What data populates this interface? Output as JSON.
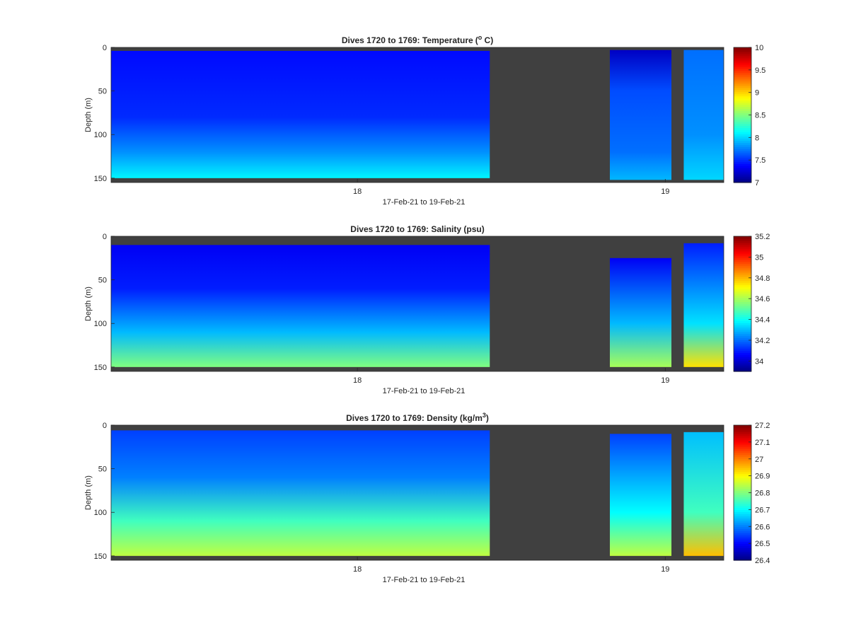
{
  "chart_data": [
    {
      "type": "heatmap",
      "title": "Dives 1720 to 1769: Temperature",
      "title_unit": "(",
      "title_unit_sup": "o",
      "title_unit_tail": " C)",
      "ylabel": "Depth (m)",
      "xlabel": "17-Feb-21 to 19-Feb-21",
      "x_ticks": [
        {
          "x": 18,
          "label": "18"
        },
        {
          "x": 19,
          "label": "19"
        }
      ],
      "xlim": [
        17.2,
        19.19
      ],
      "y_ticks": [
        0,
        50,
        100,
        150
      ],
      "ylim": [
        155,
        0
      ],
      "y_reversed": true,
      "colormap": "jet",
      "clim": [
        7,
        10
      ],
      "colorbar_ticks": [
        "7",
        "7.5",
        "8",
        "8.5",
        "9",
        "9.5",
        "10"
      ],
      "colorbar_values": [
        7,
        7.5,
        8,
        8.5,
        9,
        9.5,
        10
      ],
      "gap_color": "#404040",
      "data_gaps": [
        [
          18.43,
          18.82
        ],
        [
          19.02,
          19.06
        ]
      ],
      "profiles": [
        {
          "x_range": [
            17.2,
            18.43
          ],
          "surface_m": 4,
          "bottom_m": 150,
          "layers": [
            {
              "depth_m": 0,
              "value": 7.4
            },
            {
              "depth_m": 80,
              "value": 7.5
            },
            {
              "depth_m": 120,
              "value": 7.8
            },
            {
              "depth_m": 150,
              "value": 8.1
            }
          ]
        },
        {
          "x_range": [
            18.82,
            19.02
          ],
          "surface_m": 3,
          "bottom_m": 152,
          "layers": [
            {
              "depth_m": 0,
              "value": 7.2
            },
            {
              "depth_m": 50,
              "value": 7.6
            },
            {
              "depth_m": 120,
              "value": 7.7
            },
            {
              "depth_m": 150,
              "value": 7.9
            }
          ]
        },
        {
          "x_range": [
            19.06,
            19.19
          ],
          "surface_m": 3,
          "bottom_m": 152,
          "layers": [
            {
              "depth_m": 0,
              "value": 7.7
            },
            {
              "depth_m": 100,
              "value": 7.8
            },
            {
              "depth_m": 150,
              "value": 8.0
            }
          ]
        }
      ]
    },
    {
      "type": "heatmap",
      "title": "Dives 1720 to 1769: Salinity (psu)",
      "ylabel": "Depth (m)",
      "xlabel": "17-Feb-21 to 19-Feb-21",
      "x_ticks": [
        {
          "x": 18,
          "label": "18"
        },
        {
          "x": 19,
          "label": "19"
        }
      ],
      "xlim": [
        17.2,
        19.19
      ],
      "y_ticks": [
        0,
        50,
        100,
        150
      ],
      "ylim": [
        155,
        0
      ],
      "y_reversed": true,
      "colormap": "jet",
      "clim": [
        33.9,
        35.2
      ],
      "colorbar_ticks": [
        "34",
        "34.2",
        "34.4",
        "34.6",
        "34.8",
        "35",
        "35.2"
      ],
      "colorbar_values": [
        34,
        34.2,
        34.4,
        34.6,
        34.8,
        35,
        35.2
      ],
      "gap_color": "#404040",
      "data_gaps": [
        [
          18.43,
          18.82
        ],
        [
          19.02,
          19.06
        ]
      ],
      "profiles": [
        {
          "x_range": [
            17.2,
            18.43
          ],
          "surface_m": 10,
          "bottom_m": 150,
          "layers": [
            {
              "depth_m": 0,
              "value": 34.05
            },
            {
              "depth_m": 60,
              "value": 34.1
            },
            {
              "depth_m": 110,
              "value": 34.3
            },
            {
              "depth_m": 150,
              "value": 34.55
            }
          ]
        },
        {
          "x_range": [
            18.82,
            19.02
          ],
          "surface_m": 25,
          "bottom_m": 150,
          "layers": [
            {
              "depth_m": 0,
              "value": 34.05
            },
            {
              "depth_m": 100,
              "value": 34.3
            },
            {
              "depth_m": 150,
              "value": 34.6
            }
          ]
        },
        {
          "x_range": [
            19.06,
            19.19
          ],
          "surface_m": 8,
          "bottom_m": 150,
          "layers": [
            {
              "depth_m": 0,
              "value": 34.1
            },
            {
              "depth_m": 100,
              "value": 34.35
            },
            {
              "depth_m": 150,
              "value": 34.75
            }
          ]
        }
      ]
    },
    {
      "type": "heatmap",
      "title": "Dives 1720 to 1769: Density (kg/m",
      "title_unit_sup": "3",
      "title_unit_tail": ")",
      "ylabel": "Depth (m)",
      "xlabel": "17-Feb-21 to 19-Feb-21",
      "x_ticks": [
        {
          "x": 18,
          "label": "18"
        },
        {
          "x": 19,
          "label": "19"
        }
      ],
      "xlim": [
        17.2,
        19.19
      ],
      "y_ticks": [
        0,
        50,
        100,
        150
      ],
      "ylim": [
        155,
        0
      ],
      "y_reversed": true,
      "colormap": "jet",
      "clim": [
        26.4,
        27.2
      ],
      "colorbar_ticks": [
        "26.4",
        "26.5",
        "26.6",
        "26.7",
        "26.8",
        "26.9",
        "27",
        "27.1",
        "27.2"
      ],
      "colorbar_values": [
        26.4,
        26.5,
        26.6,
        26.7,
        26.8,
        26.9,
        27,
        27.1,
        27.2
      ],
      "gap_color": "#404040",
      "data_gaps": [
        [
          18.43,
          18.82
        ],
        [
          19.02,
          19.06
        ]
      ],
      "profiles": [
        {
          "x_range": [
            17.2,
            18.43
          ],
          "surface_m": 6,
          "bottom_m": 150,
          "layers": [
            {
              "depth_m": 0,
              "value": 26.55
            },
            {
              "depth_m": 60,
              "value": 26.6
            },
            {
              "depth_m": 110,
              "value": 26.75
            },
            {
              "depth_m": 150,
              "value": 26.85
            }
          ]
        },
        {
          "x_range": [
            18.82,
            19.02
          ],
          "surface_m": 10,
          "bottom_m": 150,
          "layers": [
            {
              "depth_m": 0,
              "value": 26.55
            },
            {
              "depth_m": 100,
              "value": 26.7
            },
            {
              "depth_m": 150,
              "value": 26.85
            }
          ]
        },
        {
          "x_range": [
            19.06,
            19.19
          ],
          "surface_m": 8,
          "bottom_m": 150,
          "layers": [
            {
              "depth_m": 0,
              "value": 26.65
            },
            {
              "depth_m": 100,
              "value": 26.75
            },
            {
              "depth_m": 150,
              "value": 26.95
            }
          ]
        }
      ]
    }
  ]
}
